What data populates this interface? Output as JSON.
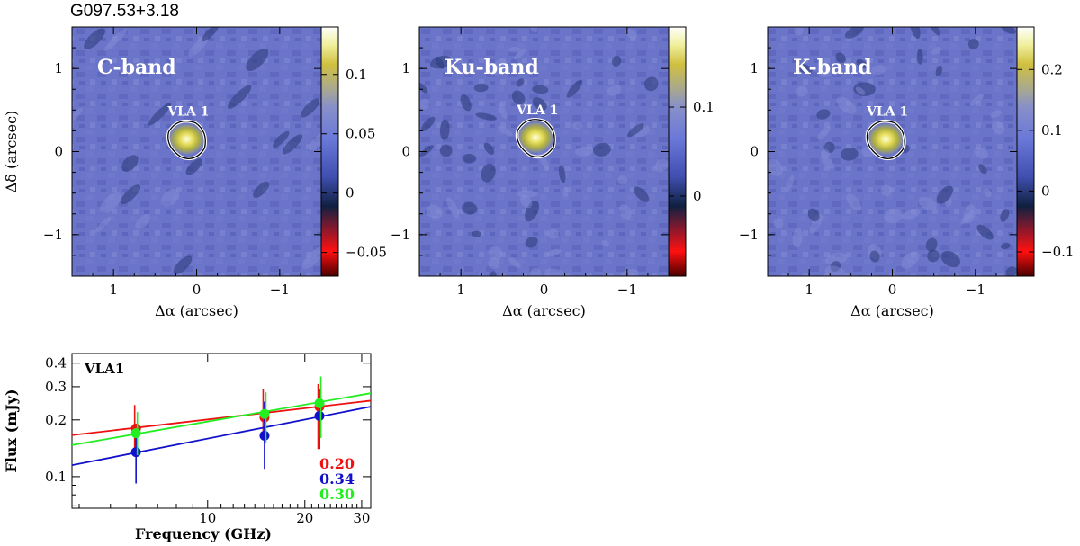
{
  "figure_title": "G097.53+3.18",
  "chart_data": [
    {
      "type": "heatmap",
      "panel_label": "C-band",
      "source_label": "VLA 1",
      "xlabel": "Δα (arcsec)",
      "ylabel": "Δδ (arcsec)",
      "xlim": [
        1.5,
        -1.5
      ],
      "ylim": [
        -1.5,
        1.5
      ],
      "x_ticks": [
        "1",
        "0",
        "−1"
      ],
      "y_ticks": [
        "1",
        "0",
        "−1"
      ],
      "source_position": [
        0.12,
        0.15
      ],
      "colorbar_range": [
        -0.07,
        0.14
      ],
      "colorbar_ticks": [
        {
          "value": 0.1,
          "label": "0.1"
        },
        {
          "value": 0.05,
          "label": "0.05"
        },
        {
          "value": 0,
          "label": "0"
        },
        {
          "value": -0.05,
          "label": "−0.05"
        }
      ]
    },
    {
      "type": "heatmap",
      "panel_label": "Ku-band",
      "source_label": "VLA 1",
      "xlabel": "Δα (arcsec)",
      "ylabel": "",
      "xlim": [
        1.5,
        -1.5
      ],
      "ylim": [
        -1.5,
        1.5
      ],
      "x_ticks": [
        "1",
        "0",
        "−1"
      ],
      "y_ticks": [
        "1",
        "0",
        "−1"
      ],
      "source_position": [
        0.1,
        0.17
      ],
      "colorbar_range": [
        -0.09,
        0.19
      ],
      "colorbar_ticks": [
        {
          "value": 0.1,
          "label": "0.1"
        },
        {
          "value": 0,
          "label": "0"
        }
      ]
    },
    {
      "type": "heatmap",
      "panel_label": "K-band",
      "source_label": "VLA 1",
      "xlabel": "Δα (arcsec)",
      "ylabel": "",
      "xlim": [
        1.5,
        -1.5
      ],
      "ylim": [
        -1.5,
        1.5
      ],
      "x_ticks": [
        "1",
        "0",
        "−1"
      ],
      "y_ticks": [
        "1",
        "0",
        "−1"
      ],
      "source_position": [
        0.08,
        0.15
      ],
      "colorbar_range": [
        -0.14,
        0.27
      ],
      "colorbar_ticks": [
        {
          "value": 0.2,
          "label": "0.2"
        },
        {
          "value": 0.1,
          "label": "0.1"
        },
        {
          "value": 0,
          "label": "0"
        },
        {
          "value": -0.1,
          "label": "−0.1"
        }
      ]
    },
    {
      "type": "scatter",
      "label": "VLA1",
      "xlabel": "Frequency (GHz)",
      "ylabel": "Flux (mJy)",
      "xscale": "log",
      "yscale": "log",
      "xlim": [
        3.8,
        32
      ],
      "ylim": [
        0.068,
        0.45
      ],
      "x_ticks": [
        "10",
        "20",
        "30"
      ],
      "x_tick_values": [
        10,
        20,
        30
      ],
      "y_ticks": [
        "0.1",
        "0.2",
        "0.3",
        "0.4"
      ],
      "y_tick_values": [
        0.1,
        0.2,
        0.3,
        0.4
      ],
      "series": [
        {
          "name": "red",
          "color": "#ee1111",
          "index_label": "0.20",
          "x": [
            6,
            15,
            22.2
          ],
          "y": [
            0.18,
            0.206,
            0.235
          ],
          "err_low": [
            0.14,
            0.16,
            0.14
          ],
          "err_high": [
            0.24,
            0.29,
            0.31
          ],
          "fit": {
            "x": [
              3.8,
              32
            ],
            "y": [
              0.166,
              0.253
            ]
          }
        },
        {
          "name": "blue",
          "color": "#1111cc",
          "index_label": "0.34",
          "x": [
            6,
            15,
            22.2
          ],
          "y": [
            0.135,
            0.165,
            0.21
          ],
          "err_low": [
            0.092,
            0.11,
            0.14
          ],
          "err_high": [
            0.18,
            0.25,
            0.29
          ],
          "fit": {
            "x": [
              3.8,
              32
            ],
            "y": [
              0.115,
              0.235
            ]
          }
        },
        {
          "name": "green",
          "color": "#22ee22",
          "index_label": "0.30",
          "x": [
            6,
            15,
            22.2
          ],
          "y": [
            0.17,
            0.215,
            0.245
          ],
          "err_low": [
            0.13,
            0.15,
            0.16
          ],
          "err_high": [
            0.22,
            0.28,
            0.34
          ],
          "fit": {
            "x": [
              3.8,
              32
            ],
            "y": [
              0.147,
              0.277
            ]
          }
        }
      ]
    }
  ]
}
